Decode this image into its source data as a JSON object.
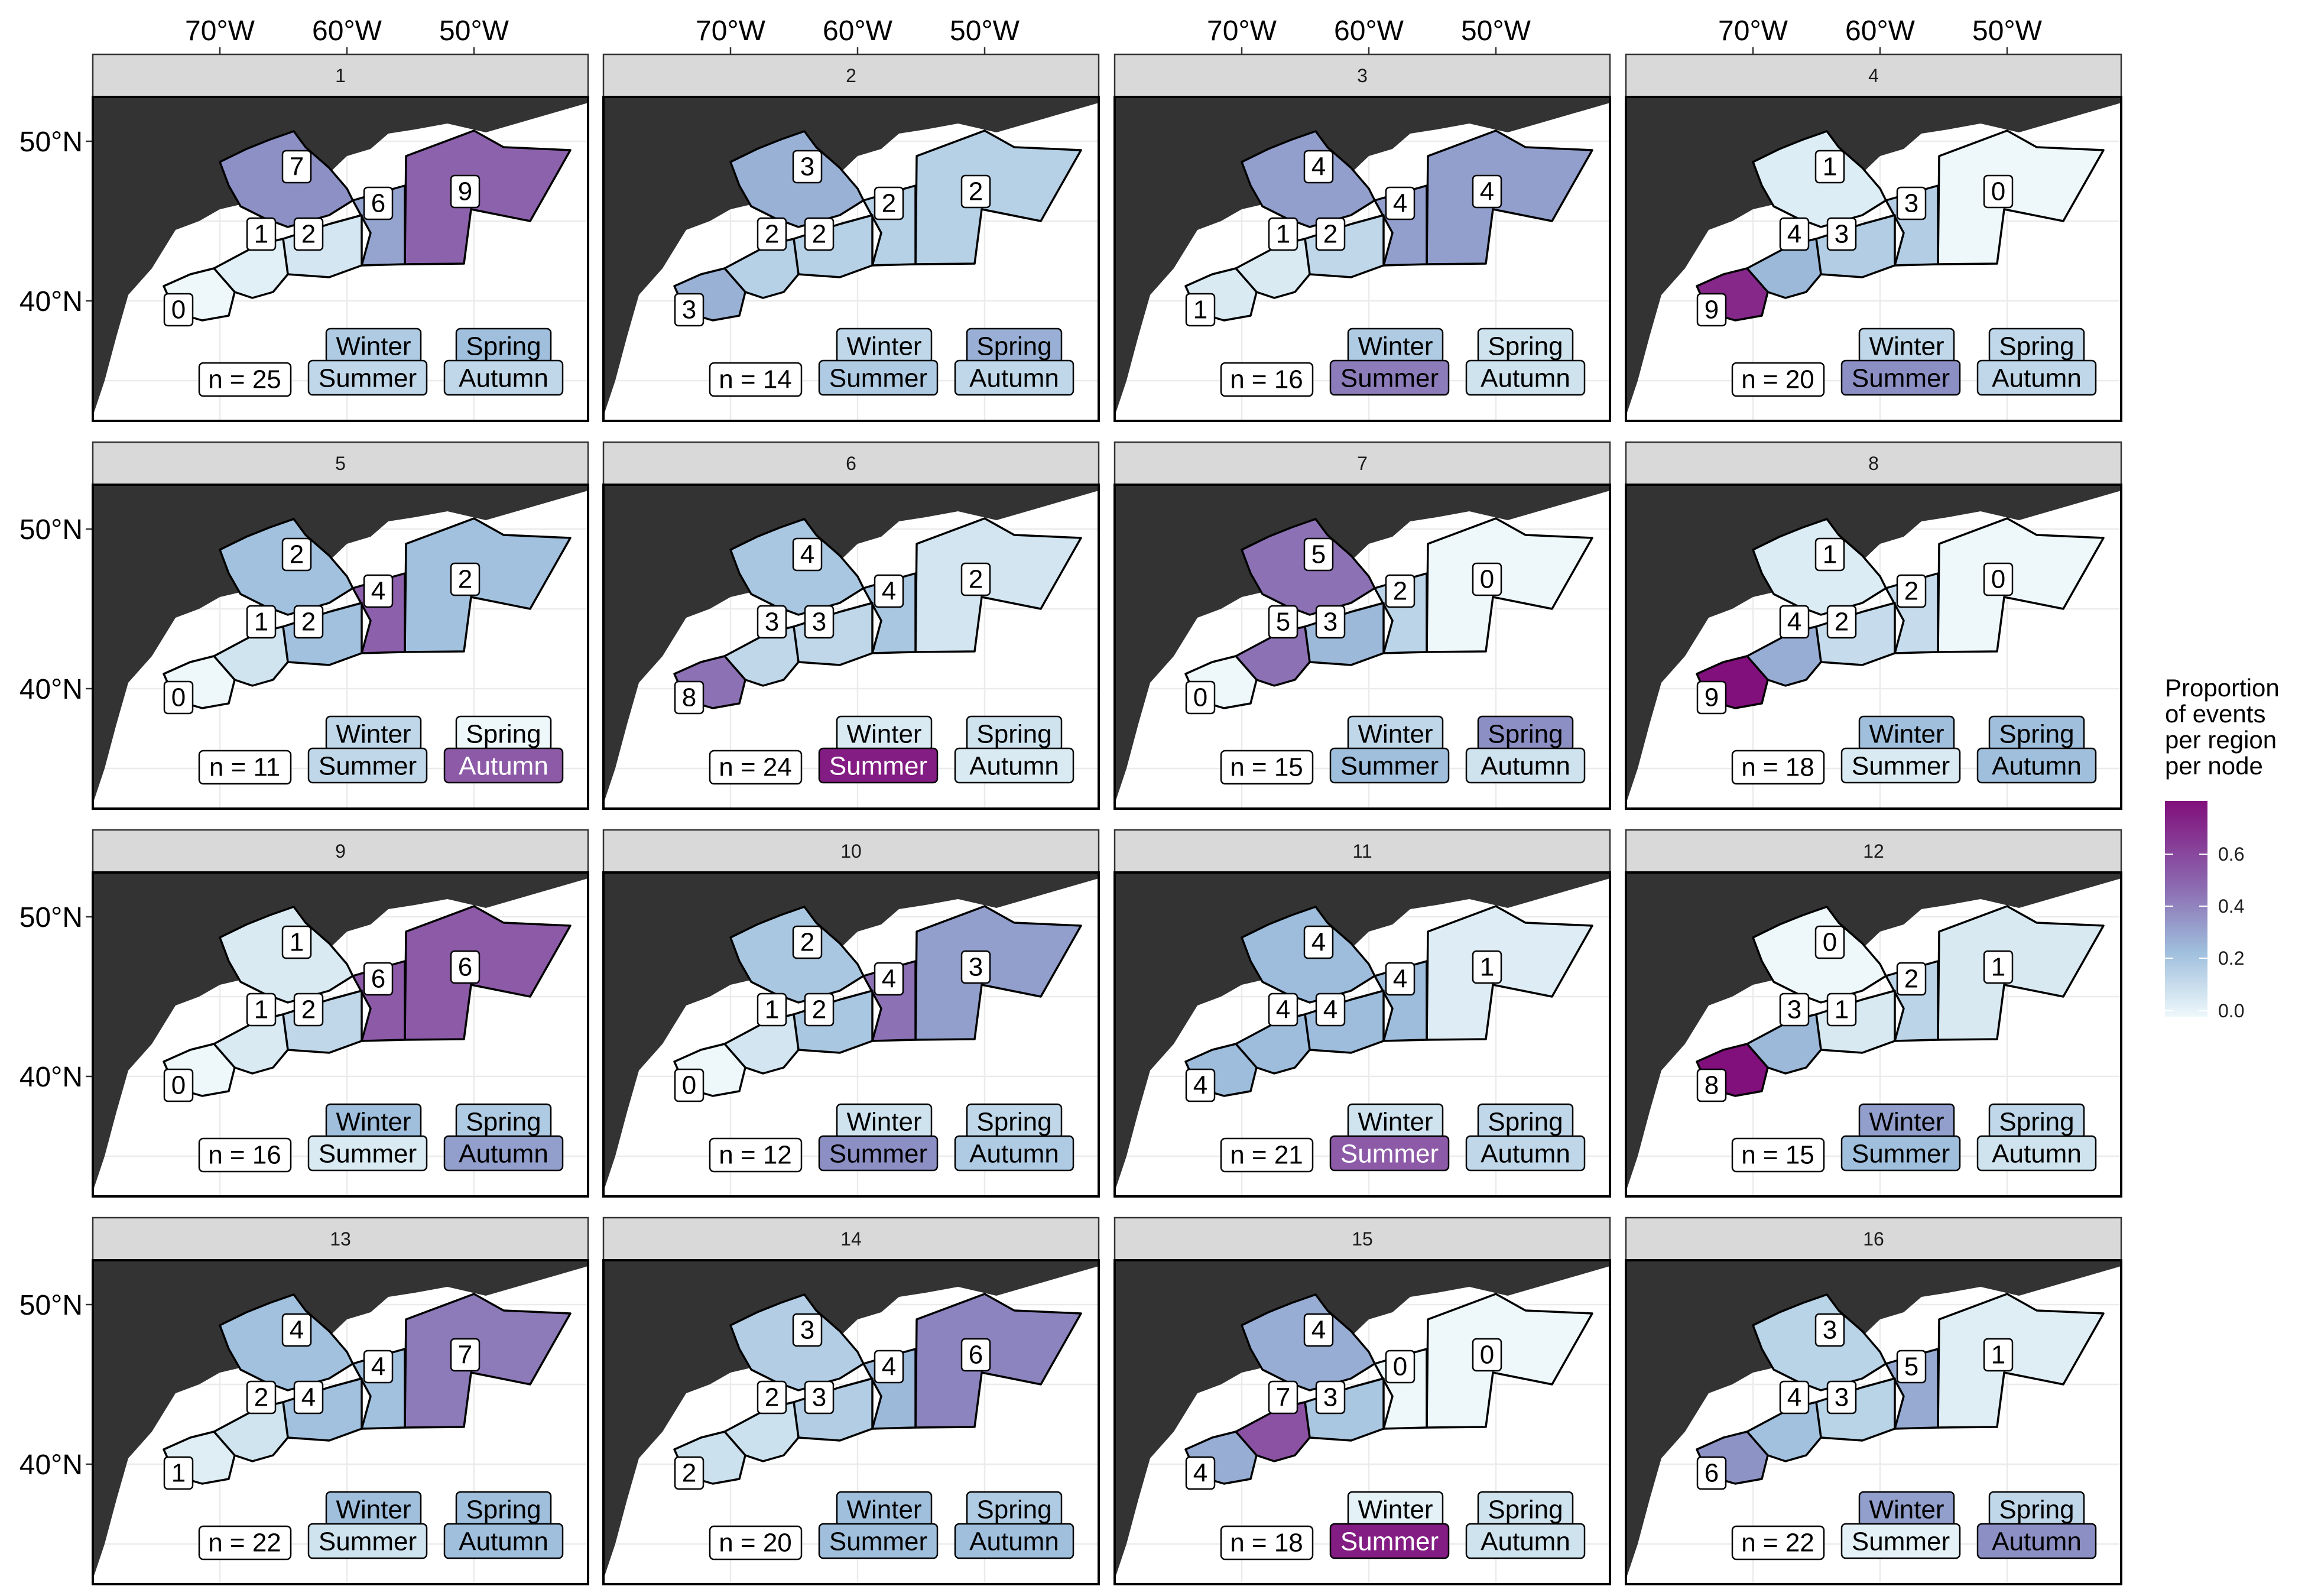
{
  "axes": {
    "lon_labels": [
      "70°W",
      "60°W",
      "50°W"
    ],
    "lat_labels": [
      "50°N",
      "40°N"
    ]
  },
  "season_labels": {
    "winter": "Winter",
    "spring": "Spring",
    "summer": "Summer",
    "autumn": "Autumn"
  },
  "legend": {
    "title_lines": [
      "Proportion",
      "of events",
      "per region",
      "per node"
    ],
    "ticks": [
      "0.6",
      "0.4",
      "0.2",
      "0.0"
    ],
    "colors": {
      "low": "#eef8fb",
      "mid": "#9fbfdd",
      "high": "#810f7c"
    }
  },
  "map_data": {
    "region_order": [
      "northeast_east",
      "newfoundland_gulf",
      "scotian_east",
      "scotian_west",
      "gulf_of_maine",
      "mid_atlantic",
      "st_lawrence"
    ],
    "panels": [
      {
        "id": "1",
        "n_label": "n = 25",
        "counts": [
          9,
          6,
          2,
          1,
          0,
          null,
          7
        ],
        "seasons": {
          "winter": 0.25,
          "spring": 0.3,
          "summer": 0.2,
          "autumn": 0.2
        }
      },
      {
        "id": "2",
        "n_label": "n = 14",
        "counts": [
          2,
          2,
          2,
          2,
          3,
          null,
          3
        ],
        "seasons": {
          "winter": 0.2,
          "spring": 0.35,
          "summer": 0.25,
          "autumn": 0.2
        }
      },
      {
        "id": "3",
        "n_label": "n = 16",
        "counts": [
          4,
          4,
          2,
          1,
          1,
          null,
          4
        ],
        "seasons": {
          "winter": 0.25,
          "spring": 0.15,
          "summer": 0.5,
          "autumn": 0.15
        }
      },
      {
        "id": "4",
        "n_label": "n = 20",
        "counts": [
          0,
          3,
          3,
          4,
          9,
          null,
          1
        ],
        "seasons": {
          "winter": 0.2,
          "spring": 0.2,
          "summer": 0.45,
          "autumn": 0.2
        }
      },
      {
        "id": "5",
        "n_label": "n = 11",
        "counts": [
          2,
          4,
          2,
          1,
          0,
          null,
          2
        ],
        "seasons": {
          "winter": 0.2,
          "spring": 0.0,
          "summer": 0.2,
          "autumn": 0.6
        }
      },
      {
        "id": "6",
        "n_label": "n = 24",
        "counts": [
          2,
          4,
          3,
          3,
          8,
          null,
          4
        ],
        "seasons": {
          "winter": 0.1,
          "spring": 0.15,
          "summer": 0.75,
          "autumn": 0.1
        }
      },
      {
        "id": "7",
        "n_label": "n = 15",
        "counts": [
          0,
          2,
          3,
          5,
          0,
          null,
          5
        ],
        "seasons": {
          "winter": 0.2,
          "spring": 0.45,
          "summer": 0.3,
          "autumn": 0.15
        }
      },
      {
        "id": "8",
        "n_label": "n = 18",
        "counts": [
          0,
          2,
          2,
          4,
          9,
          null,
          1
        ],
        "seasons": {
          "winter": 0.3,
          "spring": 0.3,
          "summer": 0.1,
          "autumn": 0.3
        }
      },
      {
        "id": "9",
        "n_label": "n = 16",
        "counts": [
          6,
          6,
          2,
          1,
          0,
          null,
          1
        ],
        "seasons": {
          "winter": 0.3,
          "spring": 0.25,
          "summer": 0.1,
          "autumn": 0.4
        }
      },
      {
        "id": "10",
        "n_label": "n = 12",
        "counts": [
          3,
          4,
          2,
          1,
          0,
          null,
          2
        ],
        "seasons": {
          "winter": 0.15,
          "spring": 0.2,
          "summer": 0.45,
          "autumn": 0.25
        }
      },
      {
        "id": "11",
        "n_label": "n = 21",
        "counts": [
          1,
          4,
          4,
          4,
          4,
          null,
          4
        ],
        "seasons": {
          "winter": 0.15,
          "spring": 0.2,
          "summer": 0.6,
          "autumn": 0.2
        }
      },
      {
        "id": "12",
        "n_label": "n = 15",
        "counts": [
          1,
          2,
          1,
          3,
          8,
          null,
          0
        ],
        "seasons": {
          "winter": 0.4,
          "spring": 0.2,
          "summer": 0.3,
          "autumn": 0.15
        }
      },
      {
        "id": "13",
        "n_label": "n = 22",
        "counts": [
          7,
          4,
          4,
          2,
          1,
          null,
          4
        ],
        "seasons": {
          "winter": 0.3,
          "spring": 0.3,
          "summer": 0.15,
          "autumn": 0.3
        }
      },
      {
        "id": "14",
        "n_label": "n = 20",
        "counts": [
          6,
          4,
          3,
          2,
          2,
          null,
          3
        ],
        "seasons": {
          "winter": 0.3,
          "spring": 0.25,
          "summer": 0.3,
          "autumn": 0.3
        }
      },
      {
        "id": "15",
        "n_label": "n = 18",
        "counts": [
          0,
          0,
          3,
          7,
          4,
          null,
          4
        ],
        "seasons": {
          "winter": 0.05,
          "spring": 0.15,
          "summer": 0.75,
          "autumn": 0.15
        }
      },
      {
        "id": "16",
        "n_label": "n = 22",
        "counts": [
          1,
          5,
          3,
          4,
          6,
          null,
          3
        ],
        "seasons": {
          "winter": 0.4,
          "spring": 0.2,
          "summer": 0.05,
          "autumn": 0.45
        }
      }
    ]
  }
}
